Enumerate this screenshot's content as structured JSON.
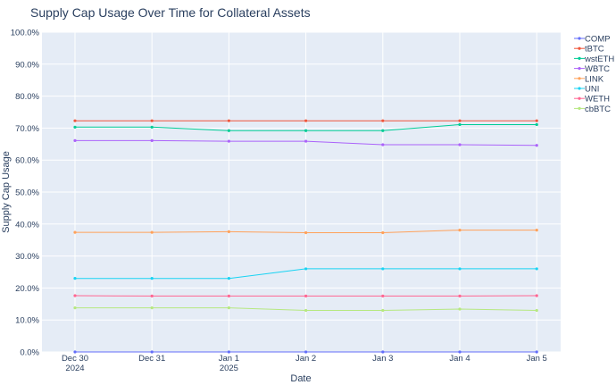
{
  "chart_data": {
    "type": "line",
    "title": "Supply Cap Usage Over Time for Collateral Assets",
    "xlabel": "Date",
    "ylabel": "Supply Cap Usage",
    "x": [
      "Dec 30",
      "Dec 31",
      "Jan 1",
      "Jan 2",
      "Jan 3",
      "Jan 4",
      "Jan 5"
    ],
    "x_sublabels": [
      "2024",
      "",
      "2025",
      "",
      "",
      "",
      ""
    ],
    "y_ticks": [
      "0.0%",
      "10.0%",
      "20.0%",
      "30.0%",
      "40.0%",
      "50.0%",
      "60.0%",
      "70.0%",
      "80.0%",
      "90.0%",
      "100.0%"
    ],
    "ylim": [
      0,
      100
    ],
    "grid": true,
    "legend_position": "right",
    "series": [
      {
        "name": "COMP",
        "color": "#636efa",
        "values": [
          0,
          0,
          0,
          0,
          0,
          0,
          0
        ]
      },
      {
        "name": "tBTC",
        "color": "#ef553b",
        "values": [
          72.3,
          72.3,
          72.3,
          72.3,
          72.3,
          72.3,
          72.3
        ]
      },
      {
        "name": "wstETH",
        "color": "#00cc96",
        "values": [
          70.3,
          70.3,
          69.2,
          69.2,
          69.2,
          71.1,
          71.1
        ]
      },
      {
        "name": "WBTC",
        "color": "#ab63fa",
        "values": [
          66.1,
          66.1,
          65.9,
          65.9,
          64.8,
          64.8,
          64.6
        ]
      },
      {
        "name": "LINK",
        "color": "#ffa15a",
        "values": [
          37.4,
          37.4,
          37.6,
          37.3,
          37.3,
          38.1,
          38.1
        ]
      },
      {
        "name": "UNI",
        "color": "#19d3f3",
        "values": [
          23.0,
          23.0,
          23.0,
          26.0,
          26.0,
          26.0,
          26.0
        ]
      },
      {
        "name": "WETH",
        "color": "#ff6692",
        "values": [
          17.6,
          17.5,
          17.5,
          17.5,
          17.5,
          17.5,
          17.6
        ]
      },
      {
        "name": "cbBTC",
        "color": "#b6e880",
        "values": [
          13.8,
          13.8,
          13.8,
          13.0,
          13.0,
          13.4,
          13.0
        ]
      }
    ]
  }
}
